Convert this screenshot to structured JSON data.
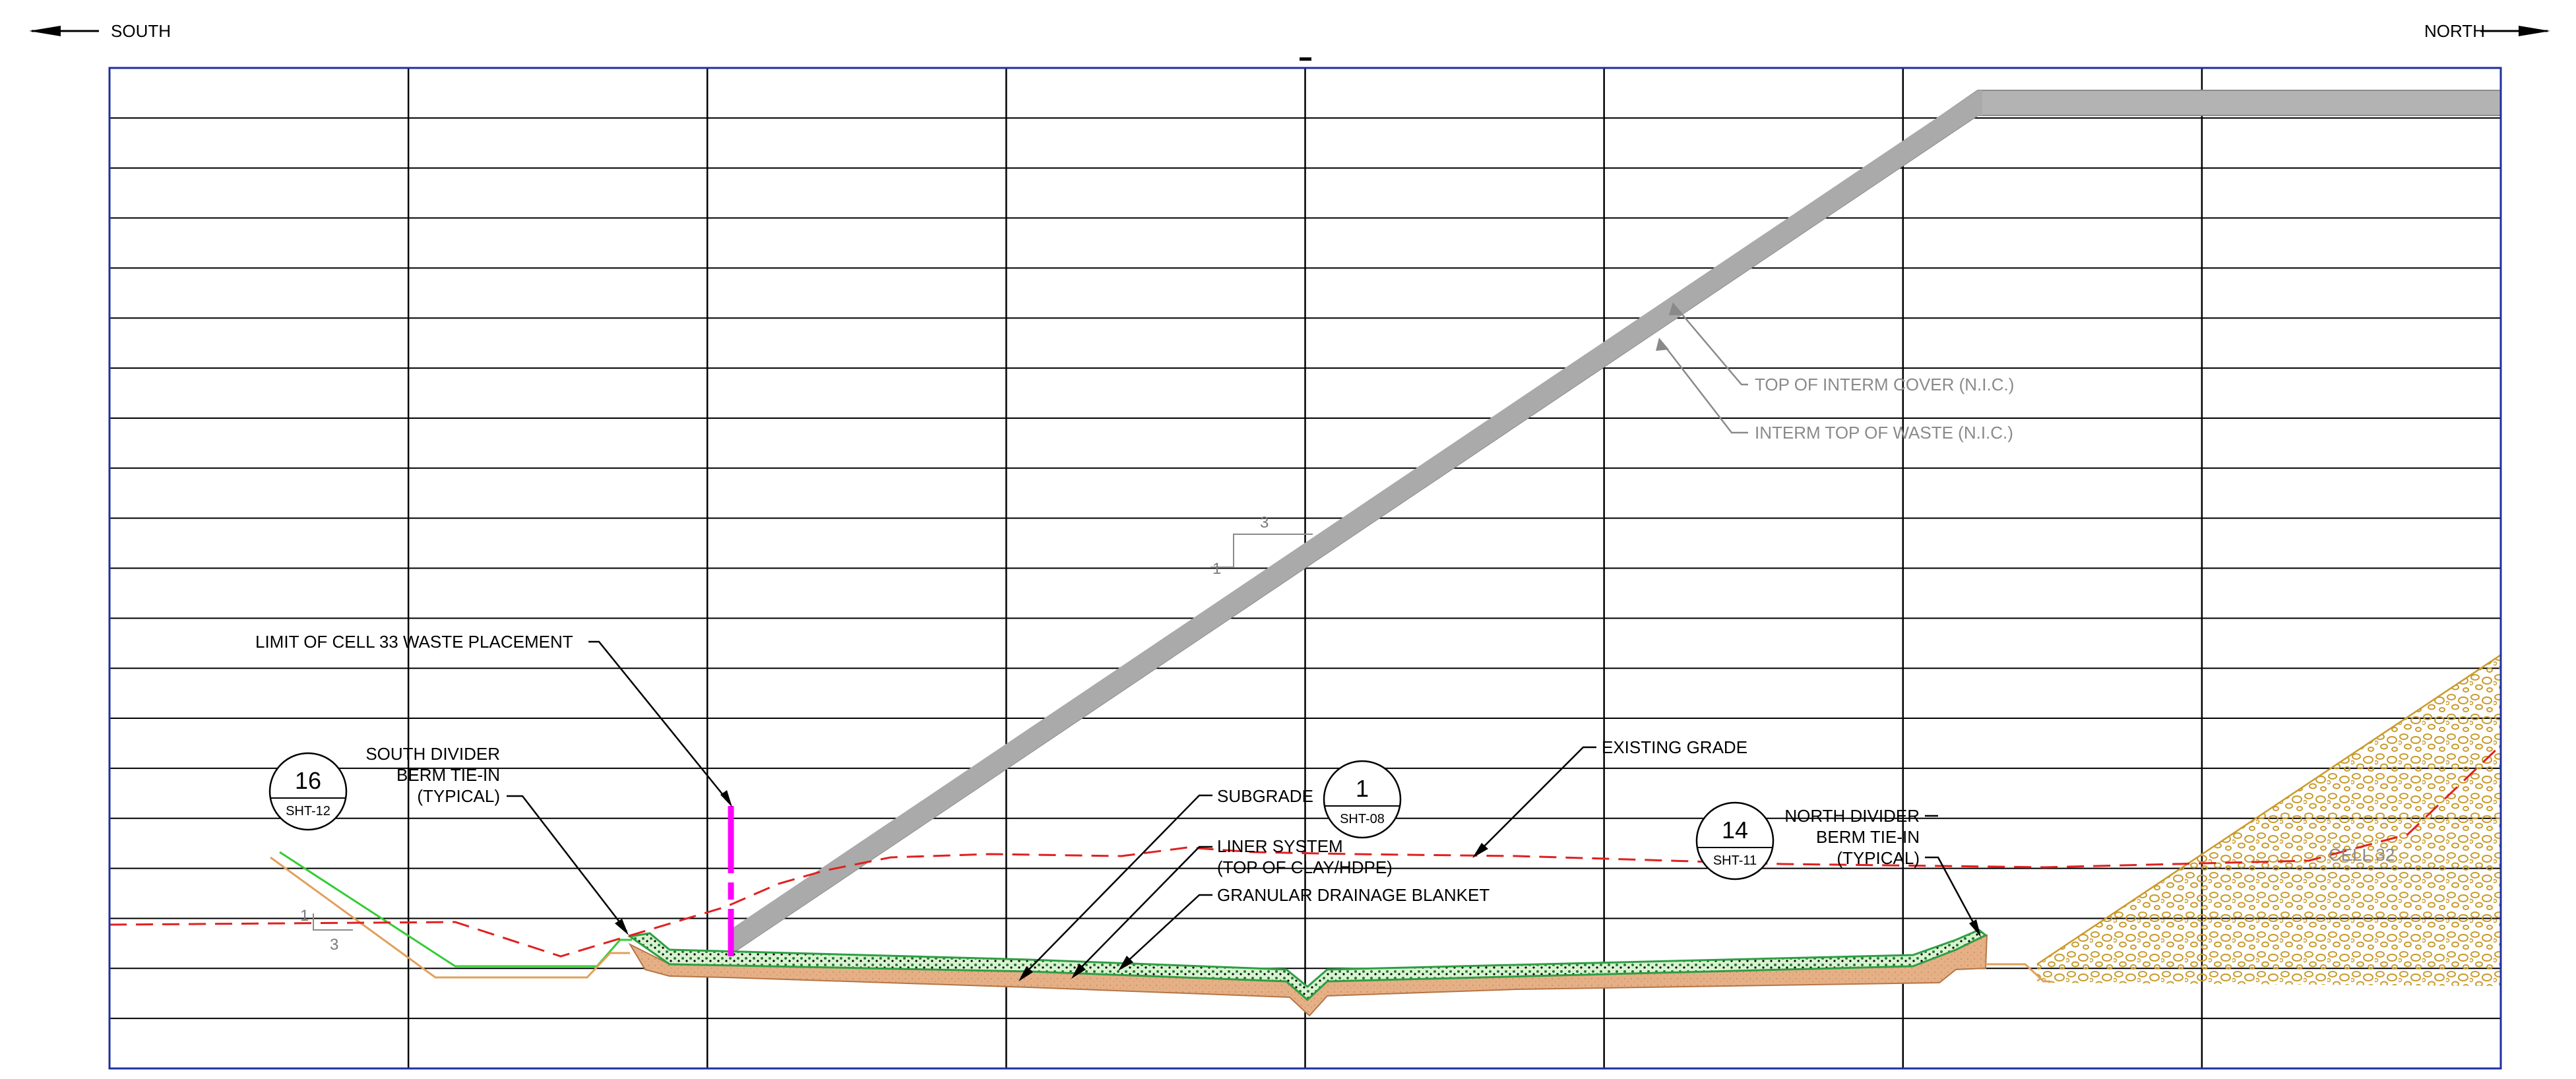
{
  "directions": {
    "left": "SOUTH",
    "right": "NORTH"
  },
  "colors": {
    "frame": "#1f2fa0",
    "grid": "#000000",
    "waste": "#b3b3b3",
    "subgrade": "#e1a77b",
    "drainage": "#2f9e45",
    "existing_grade": "#e02020",
    "limit_marker": "#ff00ff",
    "cell32_hatch": "#c89a2a"
  },
  "annotations": {
    "top_cover": "TOP OF INTERM COVER (N.I.C.)",
    "top_waste": "INTERM TOP OF WASTE (N.I.C.)",
    "limit_line": "LIMIT OF CELL 33 WASTE PLACEMENT",
    "south_berm": [
      "SOUTH DIVIDER",
      "BERM TIE-IN",
      "(TYPICAL)"
    ],
    "subgrade": "SUBGRADE",
    "liner": [
      "LINER SYSTEM",
      "(TOP OF CLAY/HDPE)"
    ],
    "drainage": "GRANULAR DRAINAGE BLANKET",
    "existing_grade": "EXISTING GRADE",
    "north_berm": [
      "NORTH DIVIDER",
      "BERM TIE-IN",
      "(TYPICAL)"
    ],
    "cell32": "CELL 32"
  },
  "details": [
    {
      "number": "16",
      "sheet": "SHT-12"
    },
    {
      "number": "1",
      "sheet": "SHT-08"
    },
    {
      "number": "14",
      "sheet": "SHT-11"
    }
  ],
  "slopes": [
    {
      "vertical": "1",
      "horizontal": "3"
    },
    {
      "vertical": "1",
      "horizontal": "3"
    }
  ]
}
